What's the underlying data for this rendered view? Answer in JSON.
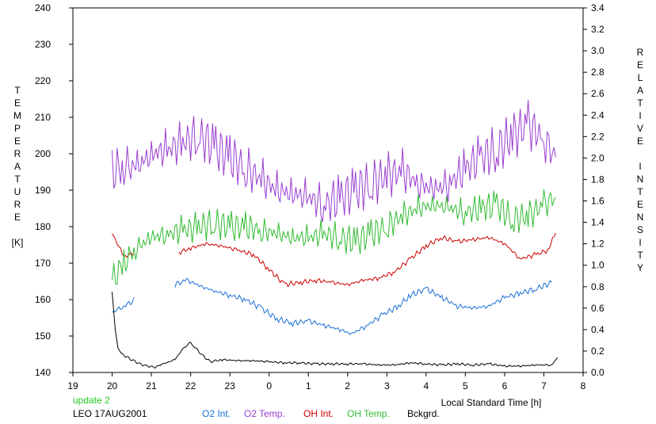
{
  "chart_data": {
    "type": "line",
    "xlabel": "Local Standard Time [h]",
    "ylabel_left_letters": [
      "T",
      "E",
      "M",
      "P",
      "E",
      "R",
      "A",
      "T",
      "U",
      "R",
      "E",
      "",
      "[K]"
    ],
    "ylabel_right_letters": [
      "R",
      "E",
      "L",
      "A",
      "T",
      "I",
      "V",
      "E",
      "",
      "I",
      "N",
      "T",
      "E",
      "N",
      "S",
      "I",
      "T",
      "Y"
    ],
    "x_axis": {
      "range": [
        19,
        32
      ],
      "ticks": [
        19,
        20,
        21,
        22,
        23,
        24,
        25,
        26,
        27,
        28,
        29,
        30,
        31,
        32
      ],
      "tick_labels": [
        "19",
        "20",
        "21",
        "22",
        "23",
        "0",
        "1",
        "2",
        "3",
        "4",
        "5",
        "6",
        "7",
        "8"
      ]
    },
    "y_left": {
      "range": [
        140,
        240
      ],
      "ticks": [
        140,
        150,
        160,
        170,
        180,
        190,
        200,
        210,
        220,
        230,
        240
      ],
      "tick_labels": [
        "140",
        "150",
        "160",
        "170",
        "180",
        "190",
        "200",
        "210",
        "220",
        "230",
        "240"
      ]
    },
    "y_right": {
      "range": [
        0.0,
        3.4
      ],
      "ticks": [
        0.0,
        0.2,
        0.4,
        0.6,
        0.8,
        1.0,
        1.2,
        1.4,
        1.6,
        1.8,
        2.0,
        2.2,
        2.4,
        2.6,
        2.8,
        3.0,
        3.2,
        3.4
      ],
      "tick_labels": [
        "0.0",
        "0.2",
        "0.4",
        "0.6",
        "0.8",
        "1.0",
        "1.2",
        "1.4",
        "1.6",
        "1.8",
        "2.0",
        "2.2",
        "2.4",
        "2.6",
        "2.8",
        "3.0",
        "3.2",
        "3.4"
      ]
    },
    "series": [
      {
        "name": "O2 Int.",
        "color": "#1a6fd4",
        "axis": "right",
        "x": [
          20.0,
          20.3,
          20.6,
          21.0,
          21.4,
          21.6,
          21.9,
          22.3,
          22.6,
          23.0,
          23.4,
          23.8,
          24.2,
          24.6,
          25.0,
          25.4,
          25.8,
          26.1,
          26.5,
          26.9,
          27.3,
          27.6,
          28.0,
          28.4,
          28.8,
          29.2,
          29.6,
          30.0,
          30.4,
          30.8,
          31.2
        ],
        "y": [
          0.56,
          0.62,
          0.68,
          null,
          null,
          0.82,
          0.86,
          0.8,
          0.76,
          0.72,
          0.68,
          0.6,
          0.5,
          0.46,
          0.48,
          0.44,
          0.4,
          0.36,
          0.44,
          0.54,
          0.62,
          0.72,
          0.78,
          0.7,
          0.62,
          0.6,
          0.62,
          0.7,
          0.74,
          0.78,
          0.84
        ]
      },
      {
        "name": "O2 Temp.",
        "color": "#9a3fd1",
        "axis": "left",
        "x": [
          20.0,
          20.3,
          20.6,
          21.0,
          21.4,
          21.8,
          22.2,
          22.6,
          23.0,
          23.4,
          23.8,
          24.2,
          24.6,
          25.0,
          25.4,
          25.8,
          26.2,
          26.6,
          27.0,
          27.4,
          27.8,
          28.2,
          28.6,
          29.0,
          29.4,
          29.8,
          30.2,
          30.6,
          31.0,
          31.3
        ],
        "y": [
          195,
          197,
          196,
          200,
          201,
          203,
          205,
          202,
          199,
          196,
          193,
          190,
          189,
          188,
          186,
          188,
          190,
          192,
          194,
          195,
          192,
          190,
          192,
          196,
          199,
          201,
          205,
          208,
          204,
          199
        ]
      },
      {
        "name": "OH Int.",
        "color": "#cc0000",
        "axis": "right",
        "x": [
          20.0,
          20.3,
          20.6,
          21.0,
          21.4,
          21.7,
          22.0,
          22.4,
          22.8,
          23.2,
          23.6,
          24.0,
          24.4,
          24.8,
          25.2,
          25.6,
          26.0,
          26.4,
          26.8,
          27.2,
          27.6,
          28.0,
          28.4,
          28.8,
          29.2,
          29.6,
          30.0,
          30.4,
          30.8,
          31.1,
          31.3
        ],
        "y": [
          1.3,
          1.08,
          1.12,
          null,
          null,
          1.12,
          1.16,
          1.2,
          1.18,
          1.14,
          1.1,
          0.96,
          0.82,
          0.84,
          0.86,
          0.84,
          0.82,
          0.86,
          0.88,
          0.94,
          1.06,
          1.18,
          1.26,
          1.22,
          1.24,
          1.26,
          1.2,
          1.06,
          1.1,
          1.14,
          1.3
        ]
      },
      {
        "name": "OH Temp.",
        "color": "#33bb33",
        "axis": "left",
        "x": [
          20.0,
          20.3,
          20.6,
          21.0,
          21.4,
          21.8,
          22.2,
          22.6,
          23.0,
          23.4,
          23.8,
          24.2,
          24.6,
          25.0,
          25.4,
          25.8,
          26.2,
          26.6,
          27.0,
          27.4,
          27.8,
          28.2,
          28.6,
          29.0,
          29.4,
          29.8,
          30.2,
          30.6,
          31.0,
          31.3
        ],
        "y": [
          165,
          170,
          174,
          177,
          178,
          179,
          180,
          181,
          180,
          180,
          179,
          178,
          177,
          177,
          178,
          177,
          176,
          178,
          180,
          183,
          185,
          186,
          185,
          184,
          185,
          186,
          182,
          183,
          186,
          188
        ]
      },
      {
        "name": "Bckgrd.",
        "color": "#000000",
        "axis": "right",
        "x": [
          20.0,
          20.08,
          20.15,
          20.3,
          20.5,
          20.7,
          20.9,
          21.1,
          21.3,
          21.6,
          21.8,
          22.0,
          22.1,
          22.3,
          22.5,
          22.8,
          23.2,
          23.6,
          24.0,
          24.4,
          24.8,
          25.2,
          25.6,
          26.0,
          26.4,
          26.8,
          27.2,
          27.6,
          28.0,
          28.4,
          28.8,
          29.2,
          29.6,
          30.0,
          30.4,
          30.8,
          31.2,
          31.35
        ],
        "y": [
          0.75,
          0.4,
          0.22,
          0.16,
          0.12,
          0.08,
          0.06,
          0.05,
          0.08,
          0.12,
          0.22,
          0.28,
          0.24,
          0.16,
          0.1,
          0.12,
          0.11,
          0.11,
          0.1,
          0.09,
          0.09,
          0.08,
          0.08,
          0.08,
          0.08,
          0.07,
          0.07,
          0.09,
          0.08,
          0.07,
          0.08,
          0.07,
          0.08,
          0.06,
          0.06,
          0.07,
          0.07,
          0.14
        ]
      }
    ]
  },
  "footer": {
    "update": "update 2",
    "station": "LEO 17AUG2001",
    "update_color": "#22cc22"
  }
}
